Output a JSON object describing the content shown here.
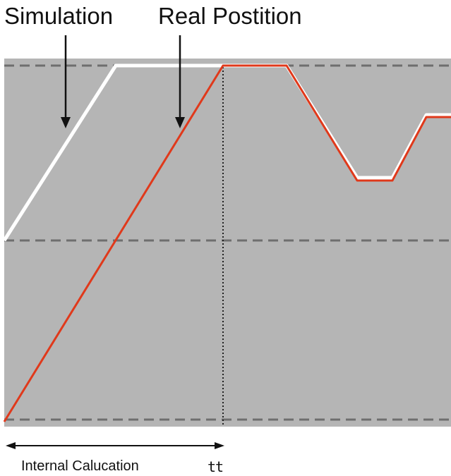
{
  "labels": {
    "simulation": "Simulation",
    "real_position": "Real Postition",
    "internal_calculation": "Internal Calucation",
    "tt": "tt"
  },
  "colors": {
    "plot_background": "#b5b5b5",
    "simulation_trace": "#ffffff",
    "real_trace": "#e0391b",
    "grid_dashed": "#6e6e6e",
    "arrow": "#111111"
  }
}
